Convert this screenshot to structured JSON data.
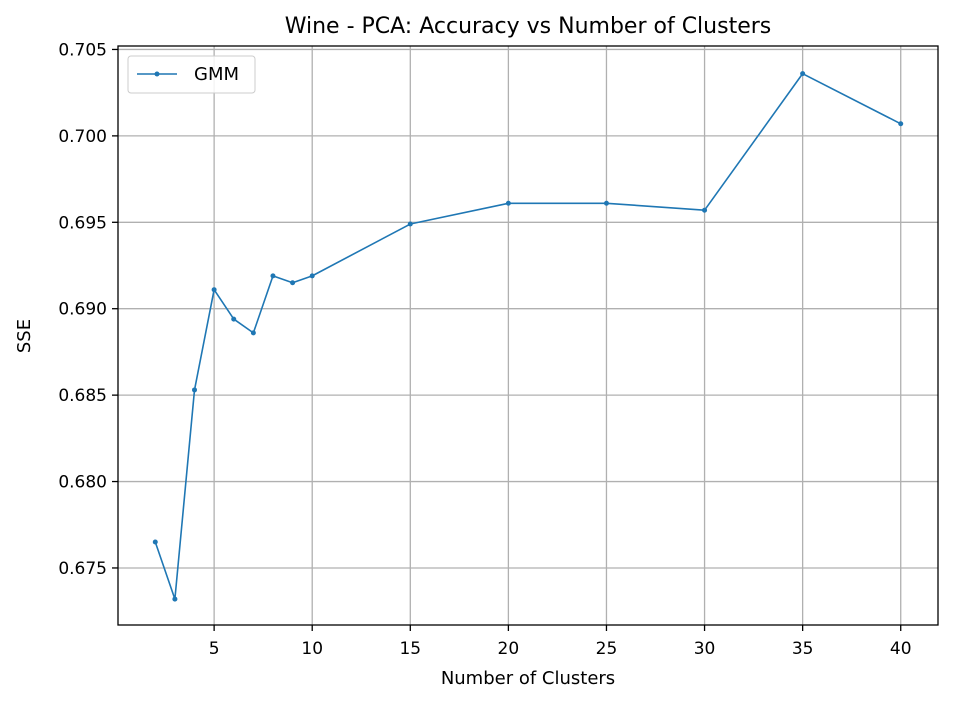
{
  "chart_data": {
    "type": "line",
    "title": "Wine - PCA: Accuracy vs Number of Clusters",
    "xlabel": "Number of Clusters",
    "ylabel": "SSE",
    "xlim": [
      0.1,
      41.9
    ],
    "ylim": [
      0.6717,
      0.7052
    ],
    "xticks": [
      5,
      10,
      15,
      20,
      25,
      30,
      35,
      40
    ],
    "xtick_labels": [
      "5",
      "10",
      "15",
      "20",
      "25",
      "30",
      "35",
      "40"
    ],
    "yticks": [
      0.675,
      0.68,
      0.685,
      0.69,
      0.695,
      0.7,
      0.705
    ],
    "ytick_labels": [
      "0.675",
      "0.680",
      "0.685",
      "0.690",
      "0.695",
      "0.700",
      "0.705"
    ],
    "grid": true,
    "legend_position": "top-left",
    "series": [
      {
        "name": "GMM",
        "color": "#1f77b4",
        "x": [
          2,
          3,
          4,
          5,
          6,
          7,
          8,
          9,
          10,
          15,
          20,
          25,
          30,
          35,
          40
        ],
        "y": [
          0.6765,
          0.6732,
          0.6853,
          0.6911,
          0.6894,
          0.6886,
          0.6919,
          0.6915,
          0.6919,
          0.6949,
          0.6961,
          0.6961,
          0.6957,
          0.7036,
          0.7007
        ]
      }
    ]
  }
}
